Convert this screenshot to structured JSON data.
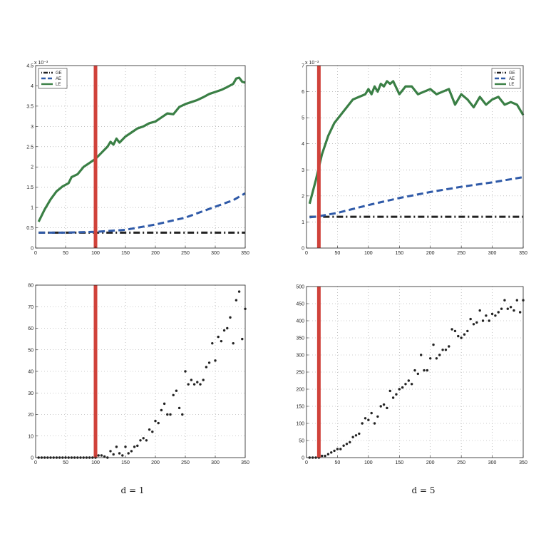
{
  "captions": [
    "d = 1",
    "d = 5"
  ],
  "chart_data": [
    {
      "type": "line",
      "title": "",
      "xlabel": "",
      "ylabel": "",
      "exponent_label": "x 10⁻³",
      "xlim": [
        0,
        350
      ],
      "ylim": [
        0,
        4.5
      ],
      "xticks": [
        0,
        50,
        100,
        150,
        200,
        250,
        300,
        350
      ],
      "yticks": [
        0,
        0.5,
        1,
        1.5,
        2,
        2.5,
        3,
        3.5,
        4,
        4.5
      ],
      "ytick_labels": [
        "0",
        "0.5",
        "1",
        "1.5",
        "2",
        "2.5",
        "3",
        "3.5",
        "4",
        "4.5"
      ],
      "grid": true,
      "legend_placement": "top-left",
      "vline": {
        "x": 100,
        "color": "#d0423a"
      },
      "series": [
        {
          "name": "GE",
          "color": "#222222",
          "style": "dashdot",
          "x": [
            5,
            350
          ],
          "y": [
            0.38,
            0.38
          ]
        },
        {
          "name": "AE",
          "color": "#2f5aa8",
          "style": "dashed",
          "x": [
            5,
            50,
            100,
            150,
            200,
            250,
            300,
            330,
            350
          ],
          "y": [
            0.38,
            0.38,
            0.4,
            0.45,
            0.58,
            0.75,
            1.02,
            1.18,
            1.35
          ]
        },
        {
          "name": "LE",
          "color": "#3a7f45",
          "style": "solid",
          "x": [
            5,
            15,
            25,
            35,
            45,
            55,
            60,
            70,
            80,
            90,
            100,
            110,
            120,
            125,
            130,
            135,
            140,
            150,
            160,
            170,
            180,
            190,
            200,
            210,
            220,
            230,
            240,
            250,
            260,
            270,
            280,
            290,
            300,
            310,
            320,
            330,
            335,
            340,
            345,
            350
          ],
          "y": [
            0.65,
            0.95,
            1.2,
            1.4,
            1.52,
            1.6,
            1.75,
            1.82,
            2.0,
            2.1,
            2.2,
            2.35,
            2.5,
            2.62,
            2.55,
            2.7,
            2.6,
            2.75,
            2.85,
            2.95,
            3.0,
            3.08,
            3.12,
            3.22,
            3.32,
            3.3,
            3.48,
            3.55,
            3.6,
            3.65,
            3.72,
            3.8,
            3.85,
            3.9,
            3.97,
            4.05,
            4.18,
            4.2,
            4.1,
            4.08
          ]
        }
      ]
    },
    {
      "type": "line",
      "title": "",
      "xlabel": "",
      "ylabel": "",
      "exponent_label": "x 10⁻³",
      "xlim": [
        0,
        350
      ],
      "ylim": [
        0,
        7
      ],
      "xticks": [
        0,
        50,
        100,
        150,
        200,
        250,
        300,
        350
      ],
      "yticks": [
        0,
        1,
        2,
        3,
        4,
        5,
        6,
        7
      ],
      "ytick_labels": [
        "0",
        "1",
        "2",
        "3",
        "4",
        "5",
        "6",
        "7"
      ],
      "grid": true,
      "legend_placement": "top-right",
      "vline": {
        "x": 20,
        "color": "#d0423a"
      },
      "series": [
        {
          "name": "GE",
          "color": "#222222",
          "style": "dashdot",
          "x": [
            5,
            350
          ],
          "y": [
            1.2,
            1.2
          ]
        },
        {
          "name": "AE",
          "color": "#2f5aa8",
          "style": "dashed",
          "x": [
            5,
            20,
            50,
            100,
            150,
            200,
            250,
            300,
            350
          ],
          "y": [
            1.18,
            1.22,
            1.35,
            1.65,
            1.92,
            2.15,
            2.35,
            2.52,
            2.72
          ]
        },
        {
          "name": "LE",
          "color": "#3a7f45",
          "style": "solid",
          "x": [
            5,
            15,
            25,
            35,
            45,
            55,
            65,
            75,
            85,
            95,
            100,
            105,
            110,
            115,
            120,
            125,
            130,
            135,
            140,
            150,
            160,
            170,
            180,
            190,
            200,
            210,
            220,
            230,
            240,
            250,
            260,
            270,
            280,
            290,
            300,
            310,
            320,
            330,
            340,
            350
          ],
          "y": [
            1.7,
            2.6,
            3.6,
            4.3,
            4.8,
            5.1,
            5.4,
            5.7,
            5.8,
            5.9,
            6.1,
            5.9,
            6.2,
            6.0,
            6.3,
            6.2,
            6.4,
            6.3,
            6.4,
            5.9,
            6.2,
            6.2,
            5.9,
            6.0,
            6.1,
            5.9,
            6.0,
            6.1,
            5.5,
            5.9,
            5.7,
            5.4,
            5.8,
            5.5,
            5.7,
            5.8,
            5.5,
            5.6,
            5.5,
            5.1
          ]
        }
      ]
    },
    {
      "type": "scatter",
      "title": "",
      "xlabel": "",
      "ylabel": "",
      "xlim": [
        0,
        350
      ],
      "ylim": [
        0,
        80
      ],
      "xticks": [
        0,
        50,
        100,
        150,
        200,
        250,
        300,
        350
      ],
      "yticks": [
        0,
        10,
        20,
        30,
        40,
        50,
        60,
        70,
        80
      ],
      "ytick_labels": [
        "0",
        "10",
        "20",
        "30",
        "40",
        "50",
        "60",
        "70",
        "80"
      ],
      "grid": true,
      "vline": {
        "x": 100,
        "color": "#d0423a"
      },
      "series": [
        {
          "name": "",
          "color": "#222222",
          "x": [
            5,
            10,
            15,
            20,
            25,
            30,
            35,
            40,
            45,
            50,
            55,
            60,
            65,
            70,
            75,
            80,
            85,
            90,
            95,
            100,
            105,
            110,
            115,
            120,
            125,
            130,
            135,
            140,
            145,
            150,
            155,
            160,
            165,
            170,
            175,
            180,
            185,
            190,
            195,
            200,
            205,
            210,
            215,
            220,
            225,
            230,
            235,
            240,
            245,
            250,
            255,
            260,
            265,
            270,
            275,
            280,
            285,
            290,
            295,
            300,
            305,
            310,
            315,
            320,
            325,
            330,
            335,
            340,
            345,
            350
          ],
          "y": [
            0,
            0,
            0,
            0,
            0,
            0,
            0,
            0,
            0,
            0,
            0,
            0,
            0,
            0,
            0,
            0,
            0,
            0,
            0,
            0,
            1,
            1,
            0.5,
            0,
            3,
            1.5,
            5,
            2,
            1,
            5,
            2,
            3,
            5,
            5.5,
            8,
            9,
            8,
            13,
            12,
            17,
            16,
            22,
            25,
            20,
            20,
            29,
            31,
            23,
            20,
            40,
            34,
            36,
            34,
            35,
            34,
            36,
            42,
            44,
            53,
            45,
            56,
            54,
            59,
            60,
            65,
            53,
            73,
            77,
            55,
            69
          ]
        }
      ]
    },
    {
      "type": "scatter",
      "title": "",
      "xlabel": "",
      "ylabel": "",
      "xlim": [
        0,
        350
      ],
      "ylim": [
        0,
        500
      ],
      "xticks": [
        0,
        50,
        100,
        150,
        200,
        250,
        300,
        350
      ],
      "yticks": [
        0,
        50,
        100,
        150,
        200,
        250,
        300,
        350,
        400,
        450,
        500
      ],
      "ytick_labels": [
        "0",
        "50",
        "100",
        "150",
        "200",
        "250",
        "300",
        "350",
        "400",
        "450",
        "500"
      ],
      "grid": true,
      "vline": {
        "x": 20,
        "color": "#d0423a"
      },
      "series": [
        {
          "name": "",
          "color": "#222222",
          "x": [
            5,
            10,
            15,
            20,
            25,
            30,
            35,
            40,
            45,
            50,
            55,
            60,
            65,
            70,
            75,
            80,
            85,
            90,
            95,
            100,
            105,
            110,
            115,
            120,
            125,
            130,
            135,
            140,
            145,
            150,
            155,
            160,
            165,
            170,
            175,
            180,
            185,
            190,
            195,
            200,
            205,
            210,
            215,
            220,
            225,
            230,
            235,
            240,
            245,
            250,
            255,
            260,
            265,
            270,
            275,
            280,
            285,
            290,
            295,
            300,
            305,
            310,
            315,
            320,
            325,
            330,
            335,
            340,
            345,
            350
          ],
          "y": [
            0,
            0,
            0,
            0,
            5,
            5,
            10,
            15,
            20,
            25,
            25,
            35,
            40,
            45,
            60,
            65,
            70,
            100,
            115,
            110,
            130,
            100,
            120,
            150,
            155,
            145,
            195,
            175,
            185,
            200,
            205,
            215,
            225,
            215,
            255,
            245,
            300,
            255,
            255,
            290,
            330,
            290,
            300,
            315,
            315,
            325,
            375,
            370,
            355,
            350,
            360,
            370,
            405,
            390,
            395,
            430,
            400,
            415,
            400,
            420,
            415,
            425,
            435,
            460,
            435,
            440,
            430,
            460,
            425,
            460
          ]
        }
      ]
    }
  ]
}
